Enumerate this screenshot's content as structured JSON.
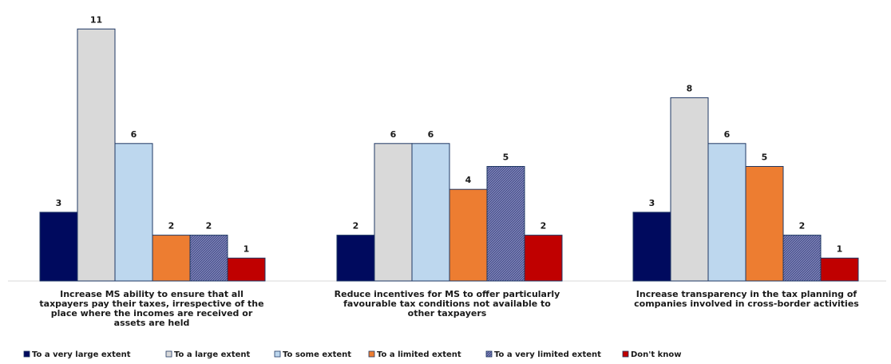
{
  "chart_data": {
    "type": "bar",
    "title": "",
    "xlabel": "",
    "ylabel": "",
    "ylim": [
      0,
      11
    ],
    "grid": false,
    "legend_position": "bottom",
    "categories": [
      [
        "Increase MS ability to ensure that all",
        "taxpayers pay their taxes, irrespective of the",
        "place where the incomes are received or",
        "assets are held"
      ],
      [
        "Reduce incentives for MS to offer particularly",
        "favourable tax conditions not available to",
        "other taxpayers"
      ],
      [
        "Increase transparency in the tax planning of",
        "companies involved in cross-border activities"
      ]
    ],
    "series": [
      {
        "name": "To a very large extent",
        "color": "#000a5e",
        "pattern": "solid",
        "values": [
          3,
          2,
          3
        ]
      },
      {
        "name": "To a large extent",
        "color": "#d9d9d9",
        "pattern": "solid",
        "values": [
          11,
          6,
          8
        ]
      },
      {
        "name": "To some extent",
        "color": "#bdd7ee",
        "pattern": "solid",
        "values": [
          6,
          6,
          6
        ]
      },
      {
        "name": "To a limited extent",
        "color": "#ed7d31",
        "pattern": "solid",
        "values": [
          2,
          4,
          5
        ]
      },
      {
        "name": "To a very limited extent",
        "color": "#5f67a8",
        "pattern": "hatch",
        "values": [
          2,
          5,
          2
        ]
      },
      {
        "name": "Don't know",
        "color": "#c00000",
        "pattern": "solid",
        "values": [
          1,
          2,
          1
        ]
      }
    ]
  }
}
